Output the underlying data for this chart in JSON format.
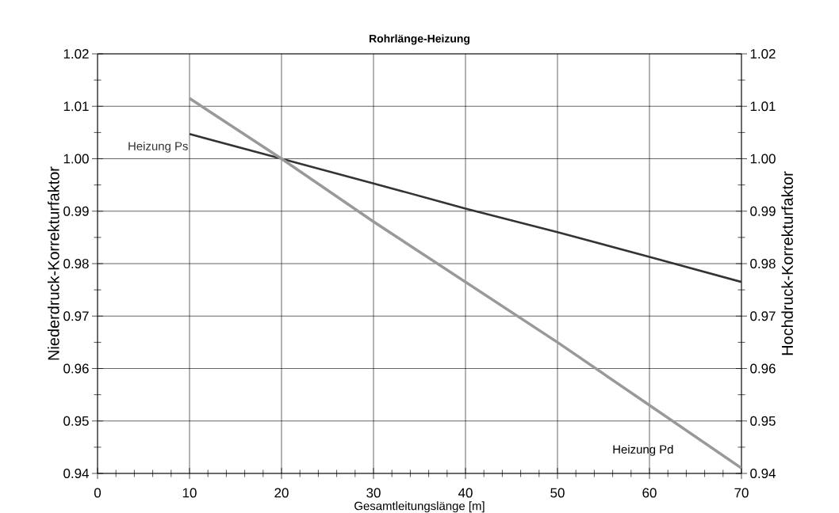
{
  "chart_data": {
    "type": "line",
    "title": "Rohrlänge-Heizung",
    "xlabel": "Gesamtleitungslänge [m]",
    "ylabel": "Niederdruck-Korrekturfaktor",
    "y2label": "Hochdruck-Korrekturfaktor",
    "x": [
      10,
      20,
      30,
      40,
      50,
      60,
      70
    ],
    "series": [
      {
        "name": "Heizung Ps",
        "color": "#333333",
        "values": [
          1.0047,
          1.0,
          0.9953,
          0.9905,
          0.986,
          0.9813,
          0.9765
        ]
      },
      {
        "name": "Heizung Pd",
        "color": "#999999",
        "values": [
          1.0115,
          1.0,
          0.988,
          0.9765,
          0.965,
          0.953,
          0.941
        ]
      }
    ],
    "xlim": [
      0,
      70
    ],
    "xticks": [
      0,
      10,
      20,
      30,
      40,
      50,
      60,
      70
    ],
    "ylim": [
      0.94,
      1.02
    ],
    "yticks": [
      0.94,
      0.95,
      0.96,
      0.97,
      0.98,
      0.99,
      {
        "value": 1.0,
        "label": "1.00"
      },
      1.01,
      1.02
    ],
    "y2lim": [
      0.94,
      1.02
    ],
    "y2ticks": [
      0.94,
      0.95,
      0.96,
      0.97,
      0.98,
      0.99,
      {
        "value": 1.0,
        "label": "1.00"
      },
      1.01,
      1.02
    ],
    "grid": true,
    "legend": false,
    "marker": "none",
    "line_style": "solid"
  }
}
